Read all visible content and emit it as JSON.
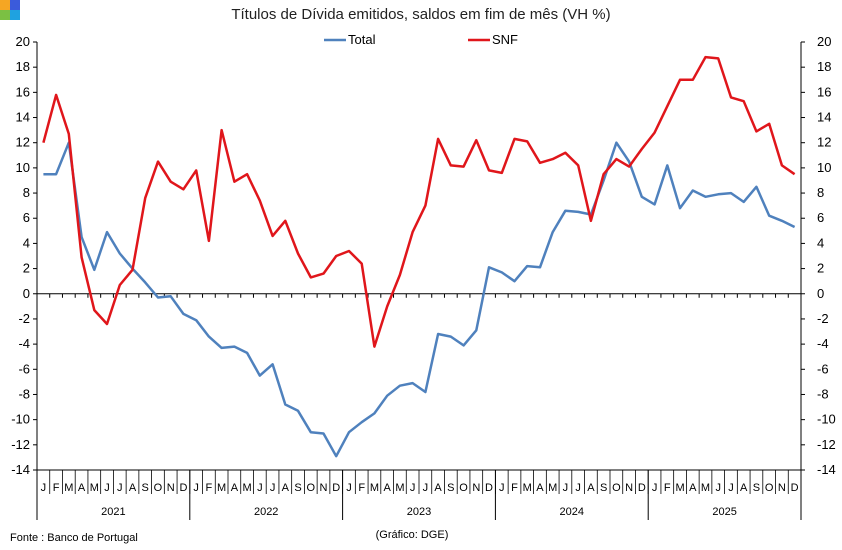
{
  "chart_data": {
    "type": "line",
    "title": "Títulos de Dívida emitidos, saldos em fim de mês  (VH %)",
    "ylim": [
      -14,
      20
    ],
    "y_ticks": [
      -14,
      -12,
      -10,
      -8,
      -6,
      -4,
      -2,
      0,
      2,
      4,
      6,
      8,
      10,
      12,
      14,
      16,
      18,
      20
    ],
    "month_labels": [
      "J",
      "F",
      "M",
      "A",
      "M",
      "J",
      "J",
      "A",
      "S",
      "O",
      "N",
      "D"
    ],
    "years": [
      "2021",
      "2022",
      "2023",
      "2024",
      "2025"
    ],
    "legend_position": "top-center",
    "grid": false,
    "series": [
      {
        "name": "Total",
        "color": "#4f81bd",
        "values": [
          9.5,
          9.5,
          12.0,
          4.5,
          1.9,
          4.9,
          3.2,
          2.0,
          0.9,
          -0.3,
          -0.2,
          -1.6,
          -2.1,
          -3.4,
          -4.3,
          -4.2,
          -4.7,
          -6.5,
          -5.6,
          -8.8,
          -9.3,
          -11.0,
          -11.1,
          -12.9,
          -11.0,
          -10.2,
          -9.5,
          -8.1,
          -7.3,
          -7.1,
          -7.8,
          -3.2,
          -3.4,
          -4.1,
          -2.9,
          2.1,
          1.7,
          1.0,
          2.2,
          2.1,
          4.9,
          6.6,
          6.5,
          6.3,
          9.0,
          12.0,
          10.5,
          7.7,
          7.1,
          10.2,
          6.8,
          8.2,
          7.7,
          7.9,
          8.0,
          7.3,
          8.5,
          6.2,
          5.8,
          5.3
        ]
      },
      {
        "name": "SNF",
        "color": "#e0161b",
        "values": [
          12.0,
          15.8,
          12.7,
          2.9,
          -1.3,
          -2.4,
          0.7,
          1.9,
          7.6,
          10.5,
          8.9,
          8.3,
          9.8,
          4.2,
          13.0,
          8.9,
          9.5,
          7.4,
          4.6,
          5.8,
          3.2,
          1.3,
          1.6,
          3.0,
          3.4,
          2.4,
          -4.2,
          -1.0,
          1.5,
          4.9,
          7.0,
          12.3,
          10.2,
          10.1,
          12.2,
          9.8,
          9.6,
          12.3,
          12.1,
          10.4,
          10.7,
          11.2,
          10.2,
          5.8,
          9.5,
          10.7,
          10.1,
          11.5,
          12.8,
          14.9,
          17.0,
          17.0,
          18.8,
          18.7,
          15.6,
          15.3,
          12.9,
          13.5,
          10.2,
          9.5
        ]
      }
    ]
  },
  "footer": {
    "source": "Fonte : Banco de Portugal",
    "credit": "(Gráfico: DGE)"
  },
  "logo": {
    "colors": [
      "#f5a623",
      "#3b5bdb",
      "#7bc043",
      "#1fa2e0"
    ]
  }
}
